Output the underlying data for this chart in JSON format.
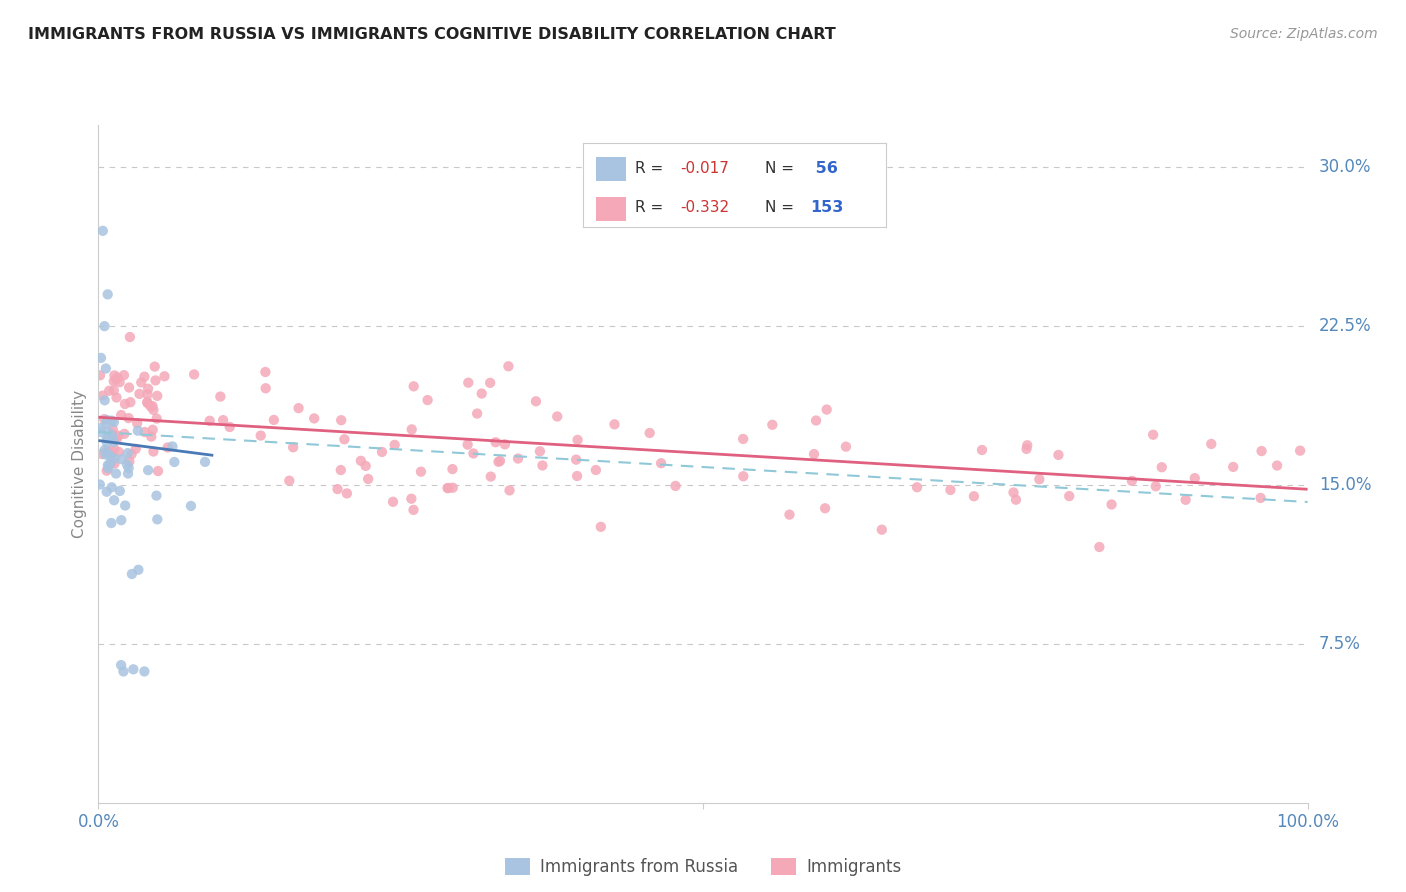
{
  "title": "IMMIGRANTS FROM RUSSIA VS IMMIGRANTS COGNITIVE DISABILITY CORRELATION CHART",
  "source": "Source: ZipAtlas.com",
  "ylabel": "Cognitive Disability",
  "y_ticks": [
    0.075,
    0.15,
    0.225,
    0.3
  ],
  "y_tick_labels": [
    "7.5%",
    "15.0%",
    "22.5%",
    "30.0%"
  ],
  "legend_blue_R": "-0.017",
  "legend_blue_N": "56",
  "legend_pink_R": "-0.332",
  "legend_pink_N": "153",
  "blue_color": "#a8c4e0",
  "pink_color": "#f4a8b8",
  "blue_line_color": "#4a7ab5",
  "pink_line_color": "#e06080",
  "dashed_line_color": "#90c8d8",
  "background_color": "#ffffff",
  "title_color": "#222222",
  "axis_color": "#5588bb",
  "grid_color": "#c8c8c8",
  "ylim": [
    0.0,
    0.32
  ],
  "xlim": [
    0.0,
    1.0
  ]
}
